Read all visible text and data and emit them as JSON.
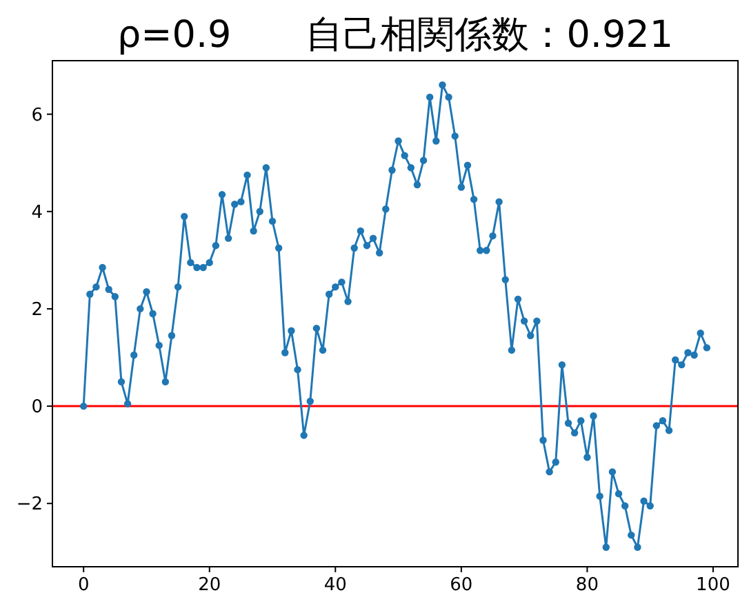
{
  "chart_data": {
    "type": "line",
    "title": "ρ=0.9　　自己相関係数：0.921",
    "x": [
      0,
      1,
      2,
      3,
      4,
      5,
      6,
      7,
      8,
      9,
      10,
      11,
      12,
      13,
      14,
      15,
      16,
      17,
      18,
      19,
      20,
      21,
      22,
      23,
      24,
      25,
      26,
      27,
      28,
      29,
      30,
      31,
      32,
      33,
      34,
      35,
      36,
      37,
      38,
      39,
      40,
      41,
      42,
      43,
      44,
      45,
      46,
      47,
      48,
      49,
      50,
      51,
      52,
      53,
      54,
      55,
      56,
      57,
      58,
      59,
      60,
      61,
      62,
      63,
      64,
      65,
      66,
      67,
      68,
      69,
      70,
      71,
      72,
      73,
      74,
      75,
      76,
      77,
      78,
      79,
      80,
      81,
      82,
      83,
      84,
      85,
      86,
      87,
      88,
      89,
      90,
      91,
      92,
      93,
      94,
      95,
      96,
      97,
      98,
      99
    ],
    "series": [
      {
        "color": "#1f77b4",
        "values": [
          0,
          2.3,
          2.45,
          2.85,
          2.4,
          2.25,
          0.5,
          0.05,
          1.05,
          2.0,
          2.35,
          1.9,
          1.25,
          0.5,
          1.45,
          2.45,
          3.9,
          2.95,
          2.85,
          2.85,
          2.95,
          3.3,
          4.35,
          3.45,
          4.15,
          4.2,
          4.75,
          3.6,
          4.0,
          4.9,
          3.8,
          3.25,
          1.1,
          1.55,
          0.75,
          -0.6,
          0.1,
          1.6,
          1.15,
          2.3,
          2.45,
          2.55,
          2.15,
          3.25,
          3.6,
          3.3,
          3.45,
          3.15,
          4.05,
          4.85,
          5.45,
          5.15,
          4.9,
          4.55,
          5.05,
          6.35,
          5.45,
          6.6,
          6.35,
          5.55,
          4.5,
          4.95,
          4.25,
          3.2,
          3.2,
          3.5,
          4.2,
          2.6,
          1.15,
          2.2,
          1.75,
          1.45,
          1.75,
          -0.7,
          -1.35,
          -1.15,
          0.85,
          -0.35,
          -0.55,
          -0.3,
          -1.05,
          -0.2,
          -1.85,
          -2.9,
          -1.35,
          -1.8,
          -2.05,
          -2.65,
          -2.9,
          -1.95,
          -2.05,
          -0.4,
          -0.3,
          -0.5,
          0.95,
          0.85,
          1.1,
          1.05,
          1.5,
          1.2
        ]
      }
    ],
    "xlim": [
      -4.95,
      103.95
    ],
    "ylim": [
      -3.3,
      7.1
    ],
    "xticks": [
      0,
      20,
      40,
      60,
      80,
      100
    ],
    "yticks": [
      {
        "value": -2,
        "label": "−2"
      },
      0,
      2,
      4,
      6
    ],
    "ref_lines": [
      {
        "axis": "y",
        "value": 0,
        "color": "#ff0000"
      }
    ],
    "marker": "circle",
    "line_style": "solid"
  }
}
